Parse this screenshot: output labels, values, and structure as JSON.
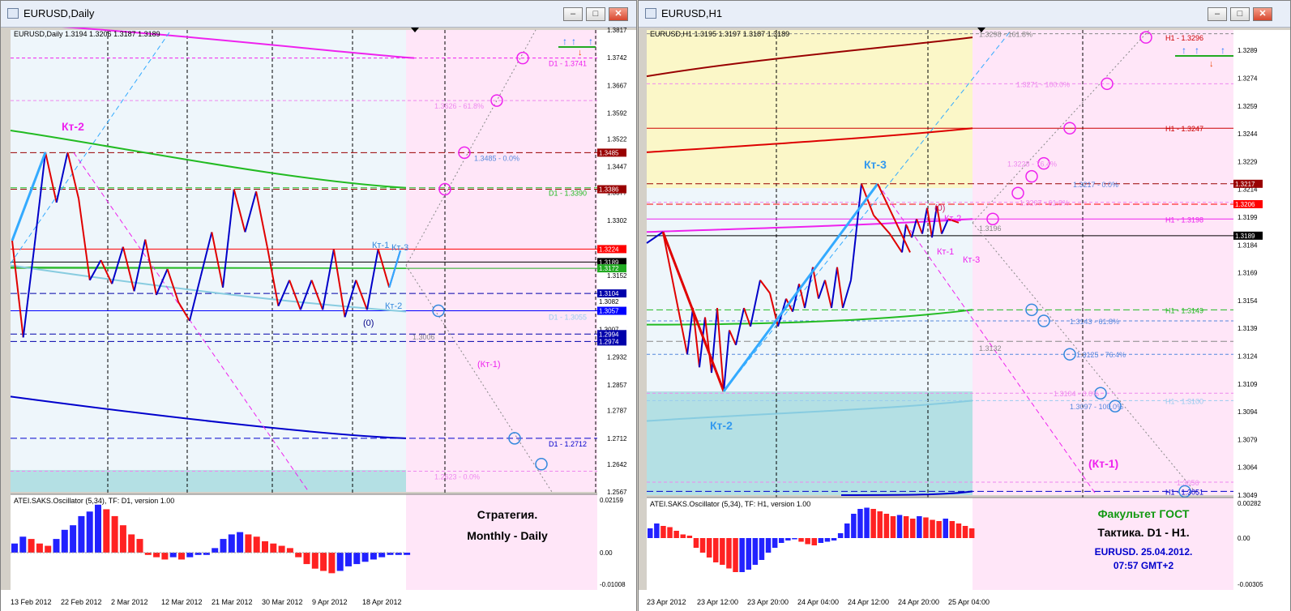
{
  "windows": [
    {
      "title": "EURUSD,Daily",
      "header": "EURUSD,Daily  1.3194 1.3206 1.3187 1.3189",
      "osc_header": "ATEI.SAKS.Oscillator (5,34), TF: D1,  version 1.00"
    },
    {
      "title": "EURUSD,H1",
      "header": "EURUSD,H1  1.3195 1.3197 1.3187 1.3189",
      "osc_header": "ATEI.SAKS.Oscillator (5,34), TF: H1,  version 1.00"
    }
  ],
  "buttons": {
    "minimize": "–",
    "maximize": "□",
    "close": "✕"
  },
  "icons": {
    "window": "window-icon",
    "arrow_up": "arrow-up-icon",
    "arrow_down": "arrow-down-icon"
  },
  "colors": {
    "bull": "#0000c8",
    "bear": "#e00000",
    "zigzag": "#33aaff",
    "ma_magenta": "#ee22ee",
    "ma_green": "#22bb22",
    "ma_blue": "#0000cc",
    "ma_red": "#cc0000",
    "ma_darkred": "#990000",
    "osc_up": "#2222ff",
    "osc_down": "#ff2222"
  },
  "chart_data": [
    {
      "type": "candlestick-line",
      "symbol": "EURUSD",
      "timeframe": "Daily",
      "ylim": [
        1.2567,
        1.3817
      ],
      "y_ticks": [
        "1.3817",
        "1.3742",
        "1.3667",
        "1.3592",
        "1.3522",
        "1.3447",
        "1.3377",
        "1.3302",
        "1.3227",
        "1.3152",
        "1.3082",
        "1.3007",
        "1.2932",
        "1.2857",
        "1.2787",
        "1.2712",
        "1.2642",
        "1.2567"
      ],
      "x_ticks": [
        "13 Feb 2012",
        "22 Feb 2012",
        "2 Mar 2012",
        "12 Mar 2012",
        "21 Mar 2012",
        "30 Mar 2012",
        "9 Apr 2012",
        "18 Apr 2012"
      ],
      "price_zigzag": [
        [
          0,
          1.3247
        ],
        [
          1,
          1.2985
        ],
        [
          2,
          1.323
        ],
        [
          3,
          1.3486
        ],
        [
          4,
          1.335
        ],
        [
          5,
          1.3486
        ],
        [
          6,
          1.336
        ],
        [
          7,
          1.314
        ],
        [
          8,
          1.3194
        ],
        [
          9,
          1.313
        ],
        [
          10,
          1.323
        ],
        [
          11,
          1.311
        ],
        [
          12,
          1.325
        ],
        [
          13,
          1.31
        ],
        [
          14,
          1.317
        ],
        [
          15,
          1.308
        ],
        [
          16,
          1.303
        ],
        [
          17,
          1.315
        ],
        [
          18,
          1.327
        ],
        [
          19,
          1.312
        ],
        [
          20,
          1.3386
        ],
        [
          21,
          1.327
        ],
        [
          22,
          1.338
        ],
        [
          23,
          1.323
        ],
        [
          24,
          1.307
        ],
        [
          25,
          1.314
        ],
        [
          26,
          1.306
        ],
        [
          27,
          1.314
        ],
        [
          28,
          1.306
        ],
        [
          29,
          1.3224
        ],
        [
          30,
          1.304
        ],
        [
          31,
          1.314
        ],
        [
          32,
          1.306
        ],
        [
          33,
          1.3224
        ],
        [
          34,
          1.312
        ],
        [
          35,
          1.322
        ]
      ],
      "price_labels": [
        {
          "text": "1.3485",
          "value": 1.3485,
          "color": "#990000"
        },
        {
          "text": "1.3386",
          "value": 1.3386,
          "color": "#990000"
        },
        {
          "text": "1.3224",
          "value": 1.3224,
          "color": "#ff0000"
        },
        {
          "text": "1.3189",
          "value": 1.3189,
          "color": "#000000"
        },
        {
          "text": "1.3172",
          "value": 1.3172,
          "color": "#22aa22"
        },
        {
          "text": "1.3104",
          "value": 1.3104,
          "color": "#0000aa"
        },
        {
          "text": "1.3082",
          "value": 1.3082,
          "color": "#ffffff",
          "fg": "#000000"
        },
        {
          "text": "1.3057",
          "value": 1.3057,
          "color": "#0000ff"
        },
        {
          "text": "1.3007",
          "value": 1.3007,
          "color": "#ffffff",
          "fg": "#000000"
        },
        {
          "text": "1.2994",
          "value": 1.2994,
          "color": "#0000aa"
        },
        {
          "text": "1.2974",
          "value": 1.2974,
          "color": "#0000aa"
        }
      ],
      "annotations": [
        {
          "text": "D1 - 1.3741",
          "value": 1.3741,
          "color": "#ee22ee"
        },
        {
          "text": "1.3626 - 61.8%",
          "value": 1.3626,
          "color": "#ee88ee"
        },
        {
          "text": "1.3485 - 0.0%",
          "value": 1.3485,
          "color": "#5588dd"
        },
        {
          "text": "D1 - 1.3390",
          "value": 1.339,
          "color": "#22bb22"
        },
        {
          "text": "D1 - 1.3055",
          "value": 1.3055,
          "color": "#99ccee"
        },
        {
          "text": "1.3006",
          "value": 1.3006,
          "color": "#888888"
        },
        {
          "text": "D1 - 1.2712",
          "value": 1.2712,
          "color": "#0000cc"
        },
        {
          "text": "1.2623 - 0.0%",
          "value": 1.2623,
          "color": "#ee88ee"
        }
      ],
      "labels": [
        "Кт-2",
        "Кт-1",
        "Кт-3",
        "Кт-2",
        "(0)",
        "(Кт-1)"
      ],
      "osc_ticks": [
        "0.02159",
        "0.00",
        "-0.01008"
      ],
      "osc_values": [
        0.004,
        0.007,
        0.006,
        0.004,
        0.003,
        0.006,
        0.01,
        0.012,
        0.016,
        0.018,
        0.021,
        0.019,
        0.016,
        0.012,
        0.008,
        0.006,
        -0.001,
        -0.002,
        -0.003,
        -0.002,
        -0.003,
        -0.002,
        -0.001,
        -0.001,
        0.002,
        0.006,
        0.008,
        0.009,
        0.008,
        0.007,
        0.005,
        0.004,
        0.003,
        0.002,
        -0.002,
        -0.005,
        -0.007,
        -0.008,
        -0.009,
        -0.008,
        -0.006,
        -0.005,
        -0.004,
        -0.003,
        -0.002,
        -0.001,
        -0.001,
        -0.001
      ],
      "strategy": [
        "Стратегия.",
        "Monthly - Daily"
      ]
    },
    {
      "type": "candlestick-line",
      "symbol": "EURUSD",
      "timeframe": "H1",
      "ylim": [
        1.3049,
        1.33
      ],
      "y_ticks": [
        "1.3289",
        "1.3274",
        "1.3259",
        "1.3244",
        "1.3229",
        "1.3214",
        "1.3199",
        "1.3184",
        "1.3169",
        "1.3154",
        "1.3139",
        "1.3124",
        "1.3109",
        "1.3094",
        "1.3079",
        "1.3064",
        "1.3049"
      ],
      "x_ticks": [
        "23 Apr 2012",
        "23 Apr 12:00",
        "23 Apr 20:00",
        "24 Apr 04:00",
        "24 Apr 12:00",
        "24 Apr 20:00",
        "25 Apr 04:00"
      ],
      "price_zigzag": [
        [
          0,
          1.319
        ],
        [
          1,
          1.3199
        ],
        [
          2,
          1.312
        ],
        [
          3,
          1.315
        ],
        [
          4,
          1.311
        ],
        [
          5,
          1.315
        ],
        [
          6,
          1.3105
        ],
        [
          7,
          1.315
        ],
        [
          8,
          1.313
        ],
        [
          9,
          1.316
        ],
        [
          10,
          1.3145
        ],
        [
          11,
          1.317
        ],
        [
          12,
          1.314
        ],
        [
          13,
          1.318
        ],
        [
          14,
          1.315
        ],
        [
          15,
          1.319
        ],
        [
          16,
          1.317
        ],
        [
          17,
          1.3217
        ],
        [
          18,
          1.318
        ],
        [
          19,
          1.32
        ],
        [
          20,
          1.319
        ],
        [
          21,
          1.3205
        ],
        [
          22,
          1.3195
        ],
        [
          23,
          1.3196
        ]
      ],
      "price_labels": [
        {
          "text": "1.3217",
          "value": 1.3217,
          "color": "#990000"
        },
        {
          "text": "1.3206",
          "value": 1.3206,
          "color": "#ff0000"
        },
        {
          "text": "1.3189",
          "value": 1.3189,
          "color": "#000000"
        }
      ],
      "annotations": [
        {
          "text": "1.3298 - 161.8%",
          "value": 1.3298,
          "color": "#888888"
        },
        {
          "text": "H1 - 1.3296",
          "value": 1.3296,
          "color": "#cc0000"
        },
        {
          "text": "1.3271 - 100.0%",
          "value": 1.3271,
          "color": "#ee88ee"
        },
        {
          "text": "H1 - 1.3247",
          "value": 1.3247,
          "color": "#cc0000"
        },
        {
          "text": "1.3228 - 76.4%",
          "value": 1.3228,
          "color": "#ee88ee"
        },
        {
          "text": "1.3217 - 0.0%",
          "value": 1.3217,
          "color": "#5588dd"
        },
        {
          "text": "1.3207 - 61.8%",
          "value": 1.3207,
          "color": "#ee88ee"
        },
        {
          "text": "H1 - 1.3198",
          "value": 1.3198,
          "color": "#ee22ee"
        },
        {
          "text": "1.3196",
          "value": 1.3196,
          "color": "#888888"
        },
        {
          "text": "H1 - 1.3149",
          "value": 1.3149,
          "color": "#22bb22"
        },
        {
          "text": "1.3143 - 61.8%",
          "value": 1.3143,
          "color": "#5588dd"
        },
        {
          "text": "1.3132",
          "value": 1.3132,
          "color": "#888888"
        },
        {
          "text": "1.3125 - 76.4%",
          "value": 1.3125,
          "color": "#5588dd"
        },
        {
          "text": "1.3104 - 0.0%",
          "value": 1.3104,
          "color": "#ee88ee"
        },
        {
          "text": "H1 - 1.3100",
          "value": 1.31,
          "color": "#99ccee"
        },
        {
          "text": "1.3097 - 100.0%",
          "value": 1.3097,
          "color": "#5588dd"
        },
        {
          "text": "1.3056",
          "value": 1.3056,
          "color": "#ee88ee"
        },
        {
          "text": "H1 - 1.3051",
          "value": 1.3051,
          "color": "#0000cc"
        }
      ],
      "labels": [
        "Кт-3",
        "Кт-2",
        "(0)",
        "Кт-2",
        "Кт-1",
        "Кт-3",
        "(Кт-1)"
      ],
      "osc_ticks": [
        "0.00282",
        "0.00",
        "-0.00305"
      ],
      "osc_values": [
        0.0008,
        0.0012,
        0.001,
        0.0009,
        0.0006,
        0.0003,
        0.0002,
        -0.0008,
        -0.0012,
        -0.0016,
        -0.002,
        -0.0022,
        -0.0025,
        -0.0028,
        -0.0028,
        -0.0026,
        -0.0022,
        -0.0018,
        -0.0012,
        -0.0008,
        -0.0004,
        -0.0002,
        -0.0001,
        -0.0003,
        -0.0005,
        -0.0006,
        -0.0004,
        -0.0003,
        -0.0002,
        0.0004,
        0.0012,
        0.002,
        0.0024,
        0.0025,
        0.0024,
        0.0022,
        0.002,
        0.0018,
        0.0019,
        0.0018,
        0.0016,
        0.0018,
        0.0017,
        0.0015,
        0.0014,
        0.0016,
        0.0014,
        0.0012,
        0.001,
        0.0008
      ],
      "faculty": [
        "Факультет ГОСТ",
        "Тактика. D1 - H1.",
        "EURUSD. 25.04.2012.",
        "07:57  GMT+2"
      ]
    }
  ]
}
